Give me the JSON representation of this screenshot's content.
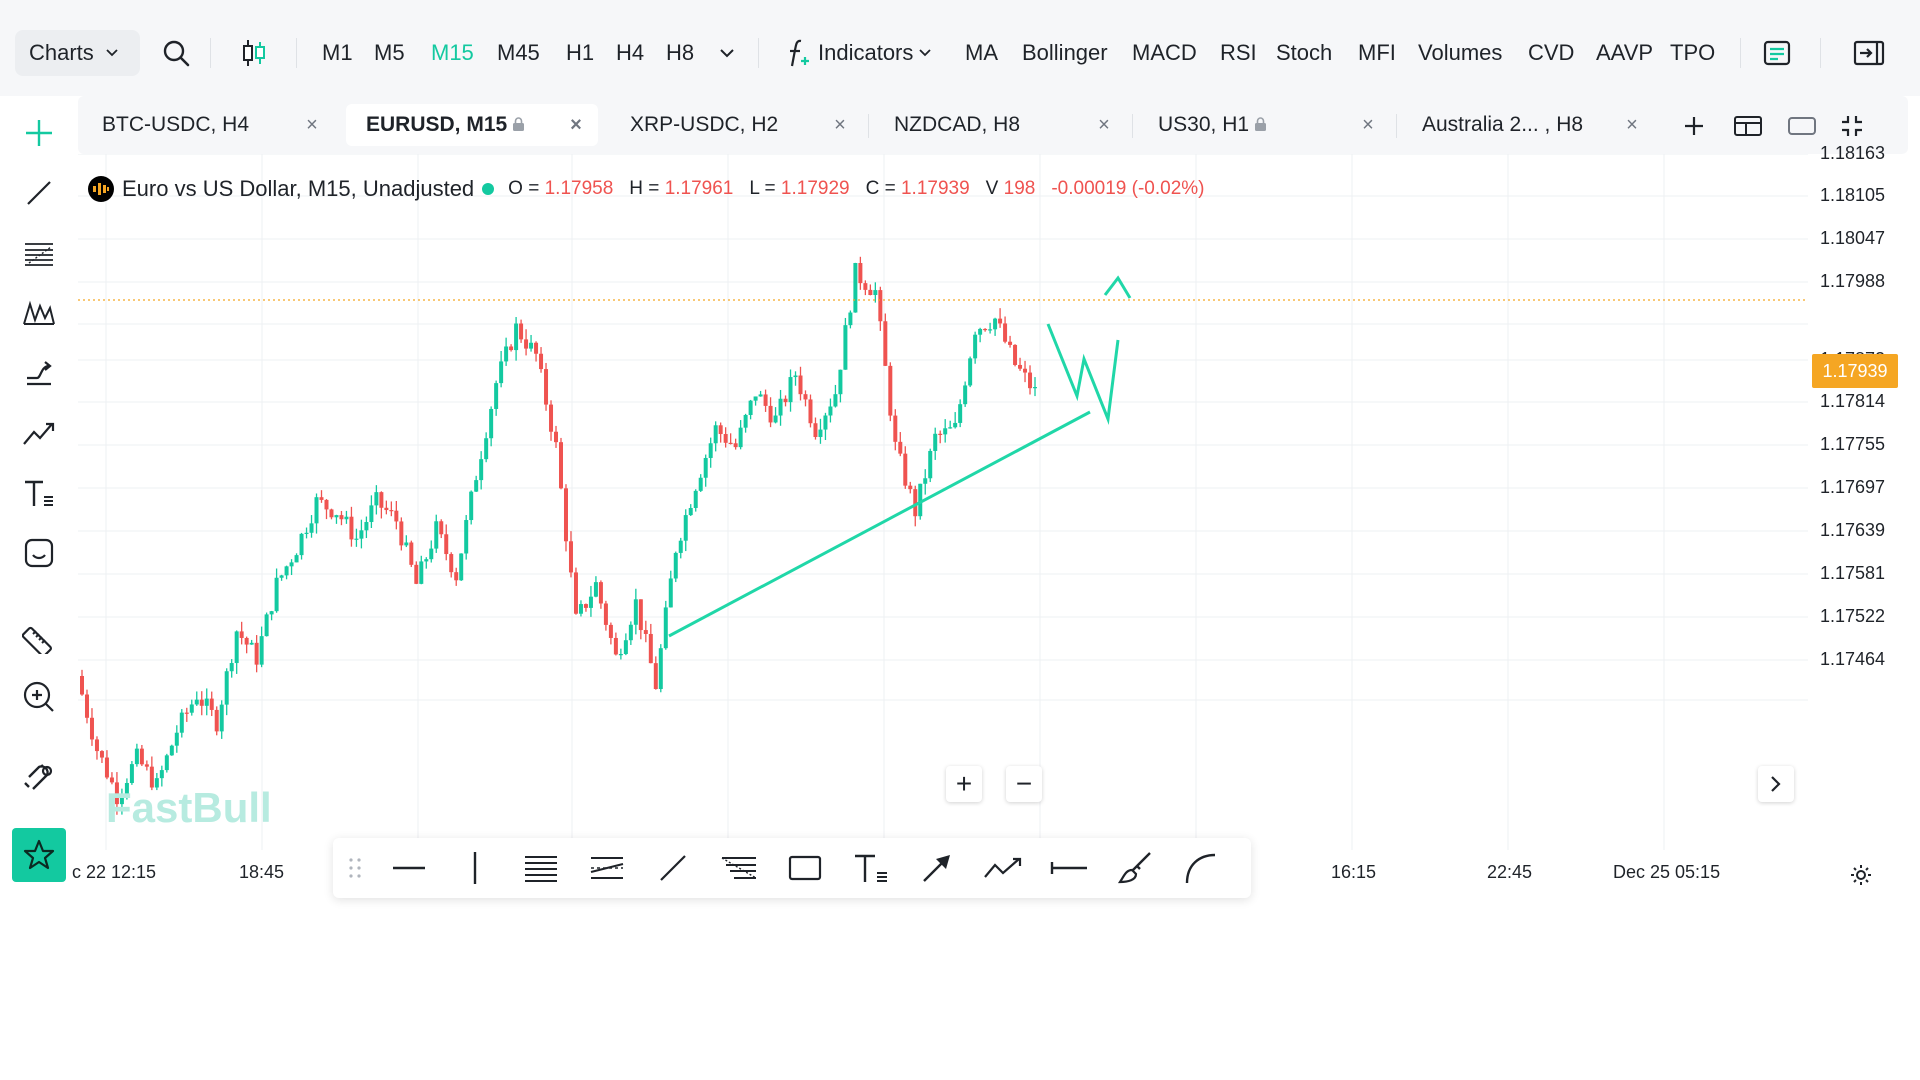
{
  "toolbar": {
    "charts_label": "Charts",
    "timeframes": [
      {
        "label": "M1",
        "active": false
      },
      {
        "label": "M5",
        "active": false
      },
      {
        "label": "M15",
        "active": true
      },
      {
        "label": "M45",
        "active": false
      },
      {
        "label": "H1",
        "active": false
      },
      {
        "label": "H4",
        "active": false
      },
      {
        "label": "H8",
        "active": false
      }
    ],
    "indicators_label": "Indicators",
    "indicator_shortcuts": [
      "MA",
      "Bollinger",
      "MACD",
      "RSI",
      "Stoch",
      "MFI",
      "Volumes",
      "CVD",
      "AAVP",
      "TPO"
    ],
    "icons": [
      "search-icon",
      "candlestick-type-icon",
      "chevron-down-icon",
      "function-icon",
      "layout-list-icon",
      "exit-panel-icon"
    ]
  },
  "sidebar": {
    "tools": [
      "crosshair-icon",
      "trend-line-icon",
      "fibonacci-icon",
      "pattern-icon",
      "prediction-icon",
      "polyline-icon",
      "text-icon",
      "emoji-icon",
      "ruler-icon",
      "zoom-in-icon",
      "magnet-icon",
      "favorites-star-icon"
    ]
  },
  "tabs": [
    {
      "label": "BTC-USDC, H4",
      "active": false,
      "locked": false
    },
    {
      "label": "EURUSD, M15",
      "active": true,
      "locked": true
    },
    {
      "label": "XRP-USDC, H2",
      "active": false,
      "locked": false
    },
    {
      "label": "NZDCAD, H8",
      "active": false,
      "locked": false
    },
    {
      "label": "US30, H1",
      "active": false,
      "locked": true
    },
    {
      "label": "Australia 2... , H8",
      "active": false,
      "locked": false
    }
  ],
  "tab_close_glyph": "×",
  "tab_actions": [
    "add-tab-icon",
    "layout-icon",
    "window-icon",
    "fullscreen-icon"
  ],
  "legend": {
    "title": "Euro vs US Dollar, M15, Unadjusted",
    "o_key": "O =",
    "o_val": "1.17958",
    "h_key": "H =",
    "h_val": "1.17961",
    "l_key": "L =",
    "l_val": "1.17929",
    "c_key": "C =",
    "c_val": "1.17939",
    "v_key": "V",
    "v_val": "198",
    "change": "-0.00019 (-0.02%)"
  },
  "watermark": "FastBull",
  "zoom": {
    "in": "+",
    "out": "−"
  },
  "price_axis": {
    "labels": [
      "1.18163",
      "1.18105",
      "1.18047",
      "1.17988",
      "1.17872",
      "1.17814",
      "1.17755",
      "1.17697",
      "1.17639",
      "1.17581",
      "1.17522",
      "1.17464"
    ],
    "last_price": "1.17939"
  },
  "time_axis": {
    "labels": [
      "c 22 12:15",
      "18:45",
      "16:15",
      "22:45",
      "Dec 25 05:15"
    ]
  },
  "drawing_toolbar": {
    "tools": [
      "drag-handle-icon",
      "horizontal-line-icon",
      "vertical-line-icon",
      "parallel-channel-icon",
      "regression-channel-icon",
      "trend-line-icon",
      "fib-retracement-icon",
      "rectangle-icon",
      "text-icon",
      "arrow-icon",
      "polyline-icon",
      "ray-icon",
      "brush-icon",
      "arc-icon"
    ]
  },
  "colors": {
    "accent": "#13c9a0",
    "bull": "#13c9a0",
    "bear": "#ef5350",
    "last_price": "#f5a623",
    "drawing": "#20d7a8",
    "grid": "#eef0f3"
  },
  "chart_data": {
    "type": "candlestick",
    "symbol": "EURUSD",
    "timeframe": "M15",
    "ylim": [
      1.1743,
      1.1819
    ],
    "last_price": 1.17939,
    "ohlc_path": [
      1.1762,
      1.1754,
      1.1749,
      1.1753,
      1.175,
      1.1756,
      1.176,
      1.1757,
      1.1767,
      1.1764,
      1.1772,
      1.1776,
      1.1781,
      1.178,
      1.1777,
      1.1781,
      1.1779,
      1.1772,
      1.1778,
      1.1773,
      1.1784,
      1.1794,
      1.18,
      1.1797,
      1.1787,
      1.1768,
      1.1772,
      1.1764,
      1.177,
      1.1761,
      1.1776,
      1.1783,
      1.1789,
      1.1787,
      1.1793,
      1.179,
      1.1795,
      1.1789,
      1.1793,
      1.1806,
      1.1804,
      1.1787,
      1.178,
      1.1788,
      1.1789,
      1.18,
      1.1801,
      1.1796,
      1.1793
    ],
    "drawings": [
      "trend line",
      "zigzag arrow"
    ]
  }
}
